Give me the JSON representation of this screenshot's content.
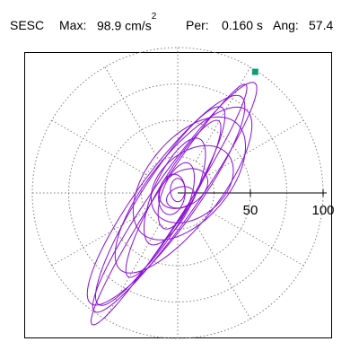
{
  "header": {
    "station": "SESC",
    "max_label": "Max:",
    "max_value": "98.9 cm/s",
    "max_exp": "2",
    "per_label": "Per:",
    "per_value": "0.160 s",
    "ang_label": "Ang:",
    "ang_value": "57.4"
  },
  "colors": {
    "trace": "#8a0fd6",
    "marker": "#119d73",
    "grid": "#808080",
    "frame": "#000000"
  },
  "chart_data": {
    "type": "polar-particle-motion",
    "title": "SESC   Max: 98.9 cm/s2  Per: 0.160 s  Ang: 57.4",
    "radial_max": 100,
    "radial_ticks": [
      50,
      100
    ],
    "radial_tick_labels": [
      "50",
      "100"
    ],
    "grid_rings": [
      25,
      50,
      75,
      100
    ],
    "spoke_angle_step_deg": 30,
    "max_point": {
      "angle_deg": 57.4,
      "radius": 98.9
    },
    "ellipses": [
      {
        "rx": 98,
        "ry": 11,
        "rot": 57.4,
        "cx": -6,
        "cy": -8,
        "start": 0.0
      },
      {
        "rx": 96,
        "ry": 15,
        "rot": 55,
        "cx": -2,
        "cy": -3,
        "start": 1.3
      },
      {
        "rx": 88,
        "ry": 20,
        "rot": 54,
        "cx": -8,
        "cy": -5,
        "start": 2.5
      },
      {
        "rx": 80,
        "ry": 16,
        "rot": 58,
        "cx": -12,
        "cy": -9,
        "start": 0.7
      },
      {
        "rx": 70,
        "ry": 24,
        "rot": 52,
        "cx": 4,
        "cy": 2,
        "start": 3.4
      },
      {
        "rx": 62,
        "ry": 12,
        "rot": 60,
        "cx": -3,
        "cy": -4,
        "start": 5.0
      },
      {
        "rx": 50,
        "ry": 28,
        "rot": 50,
        "cx": 8,
        "cy": 10,
        "start": 1.9
      },
      {
        "rx": 40,
        "ry": 14,
        "rot": 65,
        "cx": -2,
        "cy": 1,
        "start": 4.1
      },
      {
        "rx": 32,
        "ry": 22,
        "rot": 40,
        "cx": 10,
        "cy": 6,
        "start": 2.8
      },
      {
        "rx": 24,
        "ry": 10,
        "rot": 70,
        "cx": -1,
        "cy": -2,
        "start": 0.3
      },
      {
        "rx": 18,
        "ry": 12,
        "rot": 30,
        "cx": 4,
        "cy": 3,
        "start": 3.9
      },
      {
        "rx": 14,
        "ry": 9,
        "rot": 80,
        "cx": -4,
        "cy": -1,
        "start": 5.5
      },
      {
        "rx": 10,
        "ry": 7,
        "rot": 20,
        "cx": 2,
        "cy": -3,
        "start": 1.1
      },
      {
        "rx": 8,
        "ry": 5,
        "rot": 90,
        "cx": 0,
        "cy": 2,
        "start": 2.2
      }
    ]
  }
}
